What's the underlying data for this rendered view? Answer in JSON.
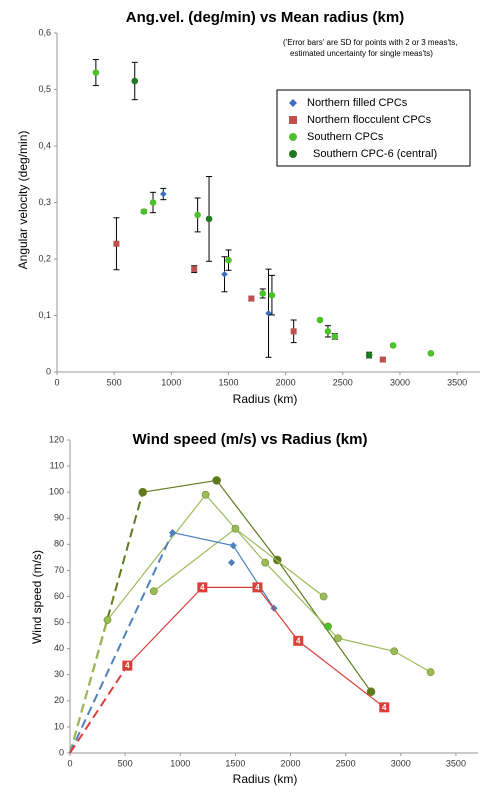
{
  "chart_data": [
    {
      "type": "scatter",
      "title": "Ang.vel. (deg/min) vs Mean radius (km)",
      "annotation": [
        "('Error bars' are SD for points with 2 or 3 meas'ts,",
        "estimated uncertainty for single meas'ts)"
      ],
      "x_label": "Radius (km)",
      "y_label": "Angular velocity (deg/min)",
      "xlim": [
        0,
        3700
      ],
      "xticks": [
        0,
        500,
        1000,
        1500,
        2000,
        2500,
        3000,
        3500
      ],
      "ylim": [
        0,
        0.6
      ],
      "yticks": [
        0,
        {
          "value": 0.1,
          "label": "0,1"
        },
        {
          "value": 0.2,
          "label": "0,2"
        },
        {
          "value": 0.3,
          "label": "0,3"
        },
        {
          "value": 0.4,
          "label": "0,4"
        },
        {
          "value": 0.5,
          "label": "0,5"
        },
        {
          "value": 0.6,
          "label": "0,6"
        }
      ],
      "legend": "upper right",
      "series": [
        {
          "name": "Northern filled CPCs",
          "color": "#3a6fc4",
          "marker": "diamond",
          "x": [
            930,
            1465,
            1850
          ],
          "values": [
            0.315,
            0.173,
            0.104
          ],
          "errors": [
            0.01,
            0.031,
            0.078
          ]
        },
        {
          "name": "Northern flocculent CPCs",
          "color": "#c0504d",
          "marker": "square",
          "x": [
            520,
            1200,
            1700,
            2070,
            2850
          ],
          "values": [
            0.227,
            0.182,
            0.13,
            0.072,
            0.022
          ],
          "errors": [
            0.046,
            0.006,
            0.004,
            0.02,
            0.003
          ]
        },
        {
          "name": "Southern CPCs",
          "color": "#4dc12a",
          "marker": "circle",
          "x": [
            340,
            760,
            840,
            1230,
            1500,
            1800,
            1880,
            2300,
            2370,
            2430,
            2940,
            3270
          ],
          "values": [
            0.53,
            0.284,
            0.3,
            0.278,
            0.198,
            0.139,
            0.136,
            0.092,
            0.072,
            0.063,
            0.047,
            0.033
          ],
          "errors": [
            0.023,
            0.003,
            0.018,
            0.03,
            0.018,
            0.008,
            0.035,
            0.002,
            0.01,
            0.005,
            0.002,
            0.002
          ]
        },
        {
          "name": "Southern CPC-6 (central)",
          "color": "#1e7b1e",
          "marker": "circle",
          "x": [
            680,
            1330,
            2730
          ],
          "values": [
            0.515,
            0.271,
            0.03
          ],
          "errors": [
            0.033,
            0.075,
            0.005
          ]
        }
      ]
    },
    {
      "type": "line",
      "title": "Wind speed (m/s) vs Radius (km)",
      "x_label": "Radius (km)",
      "y_label": "Wind speed (m/s)",
      "xlim": [
        0,
        3700
      ],
      "xticks": [
        0,
        500,
        1000,
        1500,
        2000,
        2500,
        3000,
        3500
      ],
      "ylim": [
        0,
        120
      ],
      "yticks": [
        0,
        10,
        20,
        30,
        40,
        50,
        60,
        70,
        80,
        90,
        100,
        110,
        120
      ],
      "series": [
        {
          "color": "#5f7a1d",
          "marker": "circle",
          "dash_from_origin": true,
          "x": [
            0,
            660,
            1330,
            1880,
            2730
          ],
          "values": [
            0,
            100,
            104.5,
            74,
            23.5
          ]
        },
        {
          "color": "#9bbb59",
          "marker": "circle",
          "dash_from_origin": true,
          "x": [
            0,
            340,
            1230,
            1770,
            2430,
            2940,
            3270
          ],
          "values": [
            0,
            51,
            99,
            73,
            44,
            39,
            31
          ]
        },
        {
          "color": "#9bbb59",
          "marker": "circle",
          "dash_from_origin": false,
          "x": [
            760,
            1500,
            2300
          ],
          "values": [
            62,
            86,
            60
          ]
        },
        {
          "color": "#4dc12a",
          "marker": "circle",
          "dash_from_origin": false,
          "x": [
            2340
          ],
          "values": [
            48.5
          ]
        },
        {
          "color": "#4f81bd",
          "marker": "diamond",
          "dash_from_origin": true,
          "x": [
            0,
            930,
            1480,
            1850
          ],
          "values": [
            0,
            84.5,
            79.5,
            55.5
          ]
        },
        {
          "color": "#4f81bd",
          "marker": "diamond",
          "dash_from_origin": false,
          "x": [
            1465
          ],
          "values": [
            73
          ]
        },
        {
          "color": "#d9403a",
          "marker": "square",
          "marker_label": "4",
          "dash_from_origin": true,
          "x": [
            0,
            520,
            1200,
            1700,
            2070,
            2850
          ],
          "values": [
            0,
            33.5,
            63.5,
            63.5,
            43,
            17.5
          ]
        }
      ]
    }
  ]
}
